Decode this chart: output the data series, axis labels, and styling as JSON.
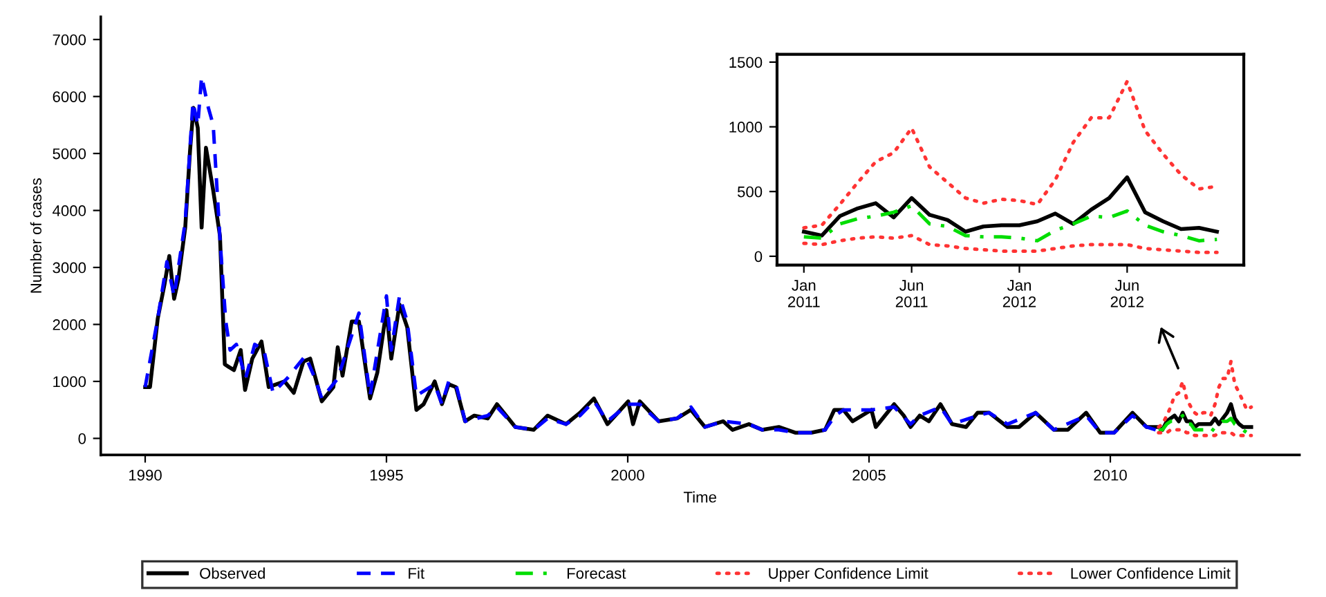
{
  "chart_data": [
    {
      "type": "line",
      "xlabel": "Time",
      "ylabel": "Number of cases",
      "xlim": [
        1989.08,
        2013.92
      ],
      "ylim": [
        -290,
        7400
      ],
      "xticks": [
        1990,
        1995,
        2000,
        2005,
        2010
      ],
      "yticks": [
        0,
        1000,
        2000,
        3000,
        4000,
        5000,
        6000,
        7000
      ],
      "grid": false,
      "legend": "bottom",
      "series": [
        {
          "name": "Observed",
          "color": "#000000",
          "line_style": "solid",
          "x": [
            1990.0,
            1990.1,
            1990.26,
            1990.4,
            1990.5,
            1990.6,
            1990.69,
            1990.83,
            1990.93,
            1991.0,
            1991.09,
            1991.17,
            1991.26,
            1991.41,
            1991.55,
            1991.65,
            1991.74,
            1991.84,
            1991.98,
            1992.07,
            1992.22,
            1992.41,
            1992.56,
            1992.89,
            1993.08,
            1993.28,
            1993.42,
            1993.66,
            1993.9,
            1993.99,
            1994.09,
            1994.28,
            1994.43,
            1994.66,
            1994.81,
            1995.0,
            1995.1,
            1995.27,
            1995.43,
            1995.62,
            1995.77,
            1996.0,
            1996.15,
            1996.29,
            1996.44,
            1996.63,
            1996.82,
            1997.1,
            1997.29,
            1997.67,
            1998.05,
            1998.34,
            1998.72,
            1999.01,
            1999.3,
            1999.58,
            2000.01,
            2000.11,
            2000.25,
            2000.64,
            2001.02,
            2001.31,
            2001.6,
            2001.98,
            2002.17,
            2002.51,
            2002.79,
            2003.13,
            2003.47,
            2003.8,
            2004.09,
            2004.28,
            2004.47,
            2004.66,
            2005.05,
            2005.14,
            2005.52,
            2005.72,
            2005.86,
            2006.05,
            2006.24,
            2006.48,
            2006.72,
            2007.01,
            2007.25,
            2007.49,
            2007.87,
            2008.11,
            2008.45,
            2008.83,
            2009.12,
            2009.5,
            2009.79,
            2010.08,
            2010.46,
            2010.75,
            2010.94,
            2011.0,
            2011.08,
            2011.17,
            2011.25,
            2011.33,
            2011.42,
            2011.5,
            2011.58,
            2011.67,
            2011.75,
            2011.83,
            2011.92,
            2012.0,
            2012.08,
            2012.17,
            2012.25,
            2012.33,
            2012.42,
            2012.5,
            2012.58,
            2012.67,
            2012.75,
            2012.83,
            2012.92
          ],
          "values": [
            900,
            900,
            2100,
            2700,
            3200,
            2450,
            2800,
            3700,
            5050,
            5800,
            5450,
            3700,
            5100,
            4350,
            3550,
            1300,
            1250,
            1200,
            1550,
            850,
            1400,
            1700,
            900,
            1000,
            800,
            1350,
            1400,
            650,
            900,
            1600,
            1100,
            2050,
            2050,
            700,
            1150,
            2250,
            1400,
            2350,
            1950,
            500,
            600,
            1000,
            600,
            950,
            900,
            300,
            400,
            350,
            600,
            200,
            150,
            400,
            250,
            450,
            700,
            250,
            650,
            250,
            650,
            300,
            350,
            500,
            200,
            300,
            150,
            250,
            150,
            200,
            100,
            100,
            150,
            500,
            500,
            300,
            500,
            200,
            600,
            400,
            200,
            400,
            300,
            600,
            250,
            200,
            450,
            450,
            200,
            200,
            450,
            150,
            150,
            450,
            100,
            100,
            450,
            200,
            200,
            200,
            150,
            300,
            350,
            400,
            300,
            450,
            300,
            300,
            200,
            250,
            250,
            250,
            250,
            350,
            250,
            350,
            450,
            600,
            350,
            250,
            200,
            200,
            200
          ]
        },
        {
          "name": "Fit",
          "color": "#0000ff",
          "line_style": "dashed",
          "x": [
            1990.0,
            1990.26,
            1990.45,
            1990.6,
            1990.83,
            1990.99,
            1991.09,
            1991.17,
            1991.31,
            1991.41,
            1991.55,
            1991.67,
            1991.76,
            1991.89,
            1992.08,
            1992.27,
            1992.46,
            1992.65,
            1992.94,
            1993.32,
            1993.52,
            1993.66,
            1993.99,
            1994.43,
            1994.66,
            1995.0,
            1995.1,
            1995.27,
            1995.43,
            1995.62,
            1996.0,
            1996.15,
            1996.29,
            1996.44,
            1996.63,
            1997.1,
            1997.29,
            1997.67,
            1998.05,
            1998.34,
            1998.72,
            1999.01,
            1999.3,
            1999.58,
            2000.01,
            2000.25,
            2000.64,
            2001.02,
            2001.31,
            2001.6,
            2001.98,
            2002.51,
            2002.79,
            2003.13,
            2003.47,
            2003.8,
            2004.09,
            2004.3,
            2004.47,
            2005.05,
            2005.52,
            2005.86,
            2006.05,
            2006.48,
            2006.72,
            2007.25,
            2007.49,
            2007.87,
            2008.45,
            2008.83,
            2009.5,
            2009.79,
            2010.08,
            2010.46,
            2010.75,
            2010.94
          ],
          "values": [
            900,
            2100,
            3100,
            2500,
            3800,
            5900,
            5500,
            6350,
            5800,
            5500,
            3500,
            2050,
            1550,
            1650,
            1050,
            1650,
            1550,
            800,
            1050,
            1450,
            1050,
            700,
            1050,
            2200,
            750,
            2500,
            1550,
            2500,
            2050,
            750,
            950,
            600,
            1000,
            950,
            300,
            400,
            550,
            200,
            150,
            350,
            250,
            400,
            650,
            300,
            600,
            600,
            300,
            350,
            550,
            200,
            300,
            250,
            150,
            150,
            100,
            100,
            150,
            400,
            500,
            500,
            550,
            250,
            400,
            550,
            250,
            400,
            450,
            250,
            450,
            150,
            400,
            100,
            100,
            400,
            200,
            150
          ]
        },
        {
          "name": "Forecast",
          "color": "#00dd00",
          "line_style": "dashdot",
          "x": [
            2011.0,
            2011.08,
            2011.17,
            2011.25,
            2011.33,
            2011.42,
            2011.5,
            2011.58,
            2011.67,
            2011.75,
            2011.83,
            2011.92,
            2012.0,
            2012.08,
            2012.17,
            2012.25,
            2012.33,
            2012.42,
            2012.5,
            2012.58,
            2012.67,
            2012.75,
            2012.83,
            2012.92
          ],
          "values": [
            150,
            150,
            250,
            300,
            300,
            350,
            400,
            250,
            250,
            150,
            150,
            150,
            150,
            100,
            200,
            250,
            300,
            300,
            350,
            250,
            200,
            150,
            100,
            150
          ]
        },
        {
          "name": "Upper Confidence Limit",
          "color": "#ff3333",
          "line_style": "dotted",
          "x": [
            2011.0,
            2011.08,
            2011.17,
            2011.25,
            2011.33,
            2011.42,
            2011.5,
            2011.58,
            2011.67,
            2011.75,
            2011.83,
            2011.92,
            2012.0,
            2012.08,
            2012.17,
            2012.25,
            2012.33,
            2012.42,
            2012.5,
            2012.58,
            2012.67,
            2012.75,
            2012.83,
            2012.92
          ],
          "values": [
            200,
            250,
            400,
            550,
            750,
            800,
            1000,
            700,
            550,
            450,
            400,
            450,
            450,
            400,
            600,
            900,
            1050,
            1050,
            1350,
            950,
            800,
            650,
            500,
            550
          ]
        },
        {
          "name": "Lower Confidence Limit",
          "color": "#ff3333",
          "line_style": "dotted",
          "x": [
            2011.0,
            2011.08,
            2011.17,
            2011.25,
            2011.33,
            2011.42,
            2011.5,
            2011.58,
            2011.67,
            2011.75,
            2011.83,
            2011.92,
            2012.0,
            2012.08,
            2012.17,
            2012.25,
            2012.33,
            2012.42,
            2012.5,
            2012.58,
            2012.67,
            2012.75,
            2012.83,
            2012.92
          ],
          "values": [
            100,
            100,
            100,
            150,
            150,
            150,
            150,
            100,
            100,
            50,
            50,
            50,
            50,
            50,
            50,
            100,
            100,
            100,
            100,
            50,
            50,
            50,
            50,
            50
          ]
        }
      ]
    },
    {
      "type": "line",
      "categories": [
        "Jan\n2011",
        null,
        null,
        null,
        null,
        null,
        "Jun\n2011",
        null,
        null,
        null,
        null,
        null,
        "Jan\n2012",
        null,
        null,
        null,
        null,
        null,
        "Jun\n2012",
        null,
        null,
        null,
        null,
        null
      ],
      "ylim": [
        -68,
        1560
      ],
      "yticks": [
        0,
        500,
        1000,
        1500
      ],
      "grid": false,
      "series": [
        {
          "color": "#000000",
          "line_style": "solid",
          "values": [
            190,
            160,
            310,
            370,
            410,
            300,
            450,
            320,
            280,
            190,
            230,
            240,
            240,
            270,
            330,
            250,
            360,
            450,
            610,
            340,
            270,
            210,
            220,
            190
          ]
        },
        {
          "color": "#00dd00",
          "line_style": "dashdot",
          "values": [
            150,
            140,
            250,
            290,
            310,
            340,
            390,
            250,
            230,
            160,
            150,
            150,
            140,
            120,
            200,
            250,
            310,
            300,
            350,
            240,
            190,
            160,
            120,
            130
          ]
        },
        {
          "color": "#ff3333",
          "line_style": "dotted",
          "values": [
            220,
            240,
            400,
            570,
            730,
            800,
            990,
            690,
            570,
            450,
            410,
            440,
            430,
            400,
            590,
            880,
            1070,
            1070,
            1350,
            970,
            790,
            630,
            520,
            540
          ]
        },
        {
          "color": "#ff3333",
          "line_style": "dotted",
          "values": [
            100,
            90,
            120,
            140,
            150,
            140,
            160,
            90,
            80,
            60,
            50,
            40,
            40,
            40,
            60,
            80,
            90,
            90,
            90,
            60,
            50,
            40,
            30,
            30
          ]
        }
      ]
    }
  ]
}
